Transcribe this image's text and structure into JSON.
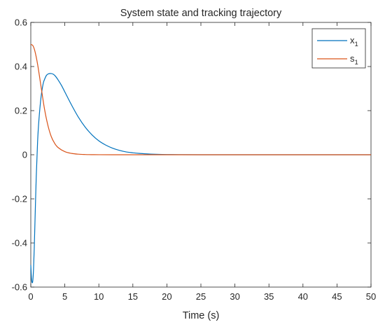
{
  "chart_data": {
    "type": "line",
    "title": "System state and tracking trajectory",
    "xlabel": "Time (s)",
    "ylabel": "",
    "xlim": [
      0,
      50
    ],
    "ylim": [
      -0.6,
      0.6
    ],
    "xticks": [
      0,
      5,
      10,
      15,
      20,
      25,
      30,
      35,
      40,
      45,
      50
    ],
    "yticks": [
      -0.6,
      -0.4,
      -0.2,
      0,
      0.2,
      0.4,
      0.6
    ],
    "grid": false,
    "legend_position": "top-right",
    "series": [
      {
        "name": "x",
        "name_subscript": "1",
        "color": "#0072BD",
        "x": [
          0,
          0.1,
          0.2,
          0.3,
          0.4,
          0.5,
          0.6,
          0.8,
          1.0,
          1.2,
          1.5,
          1.8,
          2.0,
          2.3,
          2.6,
          3.0,
          3.3,
          3.6,
          4.0,
          4.5,
          5.0,
          6.0,
          7.0,
          8.0,
          9.0,
          10.0,
          11.0,
          12.0,
          13.0,
          14.0,
          15.0,
          16.0,
          17.0,
          18.0,
          20.0,
          22.0,
          25.0,
          30.0,
          35.0,
          40.0,
          45.0,
          50.0
        ],
        "y": [
          -0.5,
          -0.56,
          -0.58,
          -0.57,
          -0.52,
          -0.43,
          -0.32,
          -0.1,
          0.06,
          0.16,
          0.26,
          0.32,
          0.34,
          0.36,
          0.367,
          0.368,
          0.365,
          0.357,
          0.34,
          0.315,
          0.285,
          0.225,
          0.17,
          0.125,
          0.09,
          0.063,
          0.044,
          0.03,
          0.02,
          0.013,
          0.009,
          0.006,
          0.004,
          0.0025,
          0.001,
          0.0004,
          0.0001,
          0,
          0,
          0,
          0,
          0
        ]
      },
      {
        "name": "s",
        "name_subscript": "1",
        "color": "#D95319",
        "x": [
          0,
          0.3,
          0.6,
          1.0,
          1.5,
          2.0,
          2.5,
          3.0,
          3.5,
          4.0,
          5.0,
          6.0,
          7.0,
          8.0,
          9.0,
          10.0,
          12.0,
          15.0,
          20.0,
          25.0,
          30.0,
          35.0,
          40.0,
          45.0,
          50.0
        ],
        "y": [
          0.5,
          0.495,
          0.47,
          0.41,
          0.31,
          0.21,
          0.135,
          0.083,
          0.052,
          0.033,
          0.014,
          0.006,
          0.0025,
          0.001,
          0.0004,
          0.0002,
          3e-05,
          0,
          0,
          0,
          0,
          0,
          0,
          0,
          0
        ]
      }
    ]
  }
}
